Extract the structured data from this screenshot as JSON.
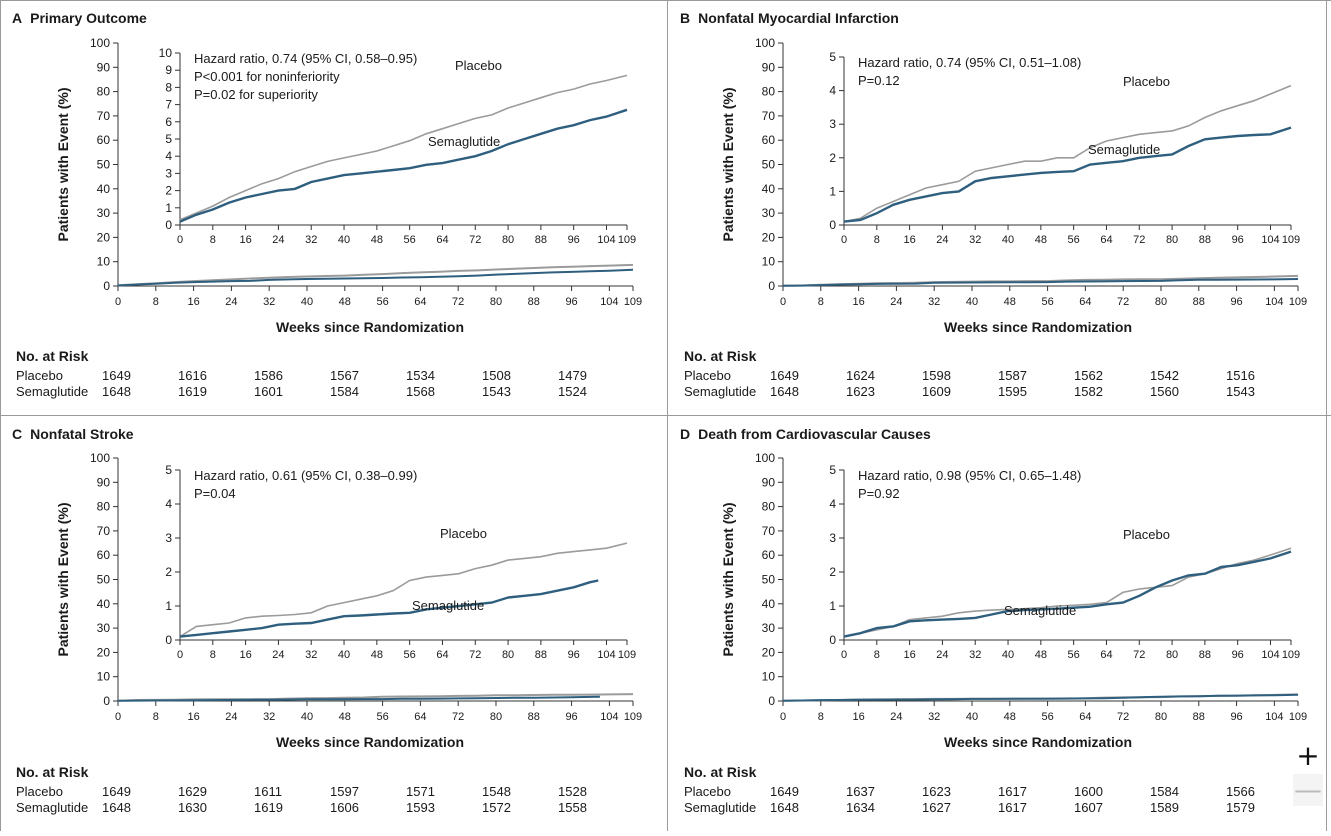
{
  "chart_data": [
    {
      "id": "A",
      "type": "line",
      "letter": "A",
      "title": "Primary Outcome",
      "xlabel": "Weeks since Randomization",
      "ylabel": "Patients with Event (%)",
      "x_ticks": [
        "0",
        "8",
        "16",
        "24",
        "32",
        "40",
        "48",
        "56",
        "64",
        "72",
        "80",
        "88",
        "96",
        "104",
        "109"
      ],
      "xlim": [
        0,
        109
      ],
      "ylim": [
        0,
        100
      ],
      "y_ticks": [
        "0",
        "10",
        "20",
        "30",
        "40",
        "50",
        "60",
        "70",
        "80",
        "90",
        "100"
      ],
      "inset": {
        "ylim": [
          0,
          10
        ],
        "y_ticks": [
          "0",
          "1",
          "2",
          "3",
          "4",
          "5",
          "6",
          "7",
          "8",
          "9",
          "10"
        ],
        "annotation": [
          "Hazard ratio, 0.74 (95% CI, 0.58–0.95)",
          "P<0.001 for noninferiority",
          "P=0.02 for superiority"
        ]
      },
      "series": [
        {
          "name": "Placebo",
          "color": "#9b9b9b",
          "x": [
            0,
            4,
            8,
            12,
            16,
            20,
            24,
            28,
            32,
            36,
            40,
            44,
            48,
            52,
            56,
            60,
            64,
            68,
            72,
            76,
            80,
            84,
            88,
            92,
            96,
            100,
            104,
            109
          ],
          "y": [
            0.3,
            0.7,
            1.1,
            1.6,
            2.0,
            2.4,
            2.7,
            3.1,
            3.4,
            3.7,
            3.9,
            4.1,
            4.3,
            4.6,
            4.9,
            5.3,
            5.6,
            5.9,
            6.2,
            6.4,
            6.8,
            7.1,
            7.4,
            7.7,
            7.9,
            8.2,
            8.4,
            8.7
          ]
        },
        {
          "name": "Semaglutide",
          "color": "#2f5f7f",
          "x": [
            0,
            4,
            8,
            12,
            16,
            20,
            24,
            28,
            32,
            36,
            40,
            44,
            48,
            52,
            56,
            60,
            64,
            68,
            72,
            76,
            80,
            84,
            88,
            92,
            96,
            100,
            104,
            109
          ],
          "y": [
            0.2,
            0.6,
            0.9,
            1.3,
            1.6,
            1.8,
            2.0,
            2.1,
            2.5,
            2.7,
            2.9,
            3.0,
            3.1,
            3.2,
            3.3,
            3.5,
            3.6,
            3.8,
            4.0,
            4.3,
            4.7,
            5.0,
            5.3,
            5.6,
            5.8,
            6.1,
            6.3,
            6.7
          ]
        }
      ],
      "risk": {
        "header": "No. at Risk",
        "rows": [
          {
            "label": "Placebo",
            "values": [
              "1649",
              "1616",
              "1586",
              "1567",
              "1534",
              "1508",
              "1479"
            ]
          },
          {
            "label": "Semaglutide",
            "values": [
              "1648",
              "1619",
              "1601",
              "1584",
              "1568",
              "1543",
              "1524"
            ]
          }
        ]
      }
    },
    {
      "id": "B",
      "type": "line",
      "letter": "B",
      "title": "Nonfatal Myocardial Infarction",
      "xlabel": "Weeks since Randomization",
      "ylabel": "Patients with Event (%)",
      "x_ticks": [
        "0",
        "8",
        "16",
        "24",
        "32",
        "40",
        "48",
        "56",
        "64",
        "72",
        "80",
        "88",
        "96",
        "104",
        "109"
      ],
      "xlim": [
        0,
        109
      ],
      "ylim": [
        0,
        100
      ],
      "y_ticks": [
        "0",
        "10",
        "20",
        "30",
        "40",
        "50",
        "60",
        "70",
        "80",
        "90",
        "100"
      ],
      "inset": {
        "ylim": [
          0,
          5
        ],
        "y_ticks": [
          "0",
          "1",
          "2",
          "3",
          "4",
          "5"
        ],
        "annotation": [
          "Hazard ratio, 0.74 (95% CI, 0.51–1.08)",
          "P=0.12"
        ]
      },
      "series": [
        {
          "name": "Placebo",
          "color": "#9b9b9b",
          "x": [
            0,
            4,
            8,
            12,
            16,
            20,
            24,
            28,
            32,
            36,
            40,
            44,
            48,
            52,
            56,
            60,
            64,
            68,
            72,
            76,
            80,
            84,
            88,
            92,
            96,
            100,
            104,
            109
          ],
          "y": [
            0.1,
            0.2,
            0.5,
            0.7,
            0.9,
            1.1,
            1.2,
            1.3,
            1.6,
            1.7,
            1.8,
            1.9,
            1.9,
            2.0,
            2.0,
            2.3,
            2.5,
            2.6,
            2.7,
            2.75,
            2.8,
            2.95,
            3.2,
            3.4,
            3.55,
            3.7,
            3.9,
            4.15
          ]
        },
        {
          "name": "Semaglutide",
          "color": "#2f5f7f",
          "x": [
            0,
            4,
            8,
            12,
            16,
            20,
            24,
            28,
            32,
            36,
            40,
            44,
            48,
            52,
            56,
            60,
            64,
            68,
            72,
            76,
            80,
            84,
            88,
            92,
            96,
            100,
            104,
            109
          ],
          "y": [
            0.1,
            0.15,
            0.35,
            0.6,
            0.75,
            0.85,
            0.95,
            1.0,
            1.3,
            1.4,
            1.45,
            1.5,
            1.55,
            1.58,
            1.6,
            1.8,
            1.85,
            1.9,
            2.0,
            2.05,
            2.1,
            2.35,
            2.55,
            2.6,
            2.65,
            2.68,
            2.7,
            2.9
          ]
        }
      ],
      "risk": {
        "header": "No. at Risk",
        "rows": [
          {
            "label": "Placebo",
            "values": [
              "1649",
              "1624",
              "1598",
              "1587",
              "1562",
              "1542",
              "1516"
            ]
          },
          {
            "label": "Semaglutide",
            "values": [
              "1648",
              "1623",
              "1609",
              "1595",
              "1582",
              "1560",
              "1543"
            ]
          }
        ]
      }
    },
    {
      "id": "C",
      "type": "line",
      "letter": "C",
      "title": "Nonfatal Stroke",
      "xlabel": "Weeks since Randomization",
      "ylabel": "Patients with Event (%)",
      "x_ticks": [
        "0",
        "8",
        "16",
        "24",
        "32",
        "40",
        "48",
        "56",
        "64",
        "72",
        "80",
        "88",
        "96",
        "104",
        "109"
      ],
      "xlim": [
        0,
        109
      ],
      "ylim": [
        0,
        100
      ],
      "y_ticks": [
        "0",
        "10",
        "20",
        "30",
        "40",
        "50",
        "60",
        "70",
        "80",
        "90",
        "100"
      ],
      "inset": {
        "ylim": [
          0,
          5
        ],
        "y_ticks": [
          "0",
          "1",
          "2",
          "3",
          "4",
          "5"
        ],
        "annotation": [
          "Hazard ratio, 0.61 (95% CI, 0.38–0.99)",
          "P=0.04"
        ]
      },
      "series": [
        {
          "name": "Placebo",
          "color": "#9b9b9b",
          "x": [
            0,
            4,
            8,
            12,
            16,
            20,
            24,
            28,
            32,
            36,
            40,
            44,
            48,
            52,
            56,
            60,
            64,
            68,
            72,
            76,
            80,
            84,
            88,
            92,
            96,
            100,
            104,
            109
          ],
          "y": [
            0.1,
            0.4,
            0.45,
            0.5,
            0.65,
            0.7,
            0.72,
            0.75,
            0.8,
            1.0,
            1.1,
            1.2,
            1.3,
            1.45,
            1.75,
            1.85,
            1.9,
            1.95,
            2.1,
            2.2,
            2.35,
            2.4,
            2.45,
            2.55,
            2.6,
            2.65,
            2.7,
            2.85
          ]
        },
        {
          "name": "Semaglutide",
          "color": "#2f5f7f",
          "x": [
            0,
            4,
            8,
            12,
            16,
            20,
            24,
            28,
            32,
            36,
            40,
            44,
            48,
            52,
            56,
            60,
            64,
            68,
            72,
            76,
            80,
            84,
            88,
            92,
            96,
            100,
            102
          ],
          "y": [
            0.1,
            0.15,
            0.2,
            0.25,
            0.3,
            0.35,
            0.45,
            0.48,
            0.5,
            0.6,
            0.7,
            0.72,
            0.75,
            0.78,
            0.8,
            0.9,
            0.95,
            1.0,
            1.05,
            1.1,
            1.25,
            1.3,
            1.35,
            1.45,
            1.55,
            1.7,
            1.75
          ]
        }
      ],
      "risk": {
        "header": "No. at Risk",
        "rows": [
          {
            "label": "Placebo",
            "values": [
              "1649",
              "1629",
              "1611",
              "1597",
              "1571",
              "1548",
              "1528"
            ]
          },
          {
            "label": "Semaglutide",
            "values": [
              "1648",
              "1630",
              "1619",
              "1606",
              "1593",
              "1572",
              "1558"
            ]
          }
        ]
      }
    },
    {
      "id": "D",
      "type": "line",
      "letter": "D",
      "title": "Death from Cardiovascular Causes",
      "xlabel": "Weeks since Randomization",
      "ylabel": "Patients with Event (%)",
      "x_ticks": [
        "0",
        "8",
        "16",
        "24",
        "32",
        "40",
        "48",
        "56",
        "64",
        "72",
        "80",
        "88",
        "96",
        "104",
        "109"
      ],
      "xlim": [
        0,
        109
      ],
      "ylim": [
        0,
        100
      ],
      "y_ticks": [
        "0",
        "10",
        "20",
        "30",
        "40",
        "50",
        "60",
        "70",
        "80",
        "90",
        "100"
      ],
      "inset": {
        "ylim": [
          0,
          5
        ],
        "y_ticks": [
          "0",
          "1",
          "2",
          "3",
          "4",
          "5"
        ],
        "annotation": [
          "Hazard ratio, 0.98 (95% CI, 0.65–1.48)",
          "P=0.92"
        ]
      },
      "series": [
        {
          "name": "Placebo",
          "color": "#9b9b9b",
          "x": [
            0,
            4,
            8,
            12,
            16,
            20,
            24,
            28,
            32,
            36,
            40,
            44,
            48,
            52,
            56,
            60,
            64,
            68,
            72,
            76,
            80,
            84,
            88,
            92,
            96,
            100,
            104,
            109
          ],
          "y": [
            0.1,
            0.2,
            0.3,
            0.4,
            0.6,
            0.65,
            0.7,
            0.8,
            0.85,
            0.88,
            0.9,
            0.92,
            0.95,
            1.0,
            1.02,
            1.05,
            1.1,
            1.4,
            1.5,
            1.55,
            1.6,
            1.85,
            1.95,
            2.1,
            2.25,
            2.35,
            2.5,
            2.7
          ]
        },
        {
          "name": "Semaglutide",
          "color": "#2f5f7f",
          "x": [
            0,
            4,
            8,
            12,
            16,
            20,
            24,
            28,
            32,
            36,
            40,
            44,
            48,
            52,
            56,
            60,
            64,
            68,
            72,
            76,
            80,
            84,
            88,
            92,
            96,
            100,
            104,
            109
          ],
          "y": [
            0.1,
            0.2,
            0.35,
            0.4,
            0.55,
            0.58,
            0.6,
            0.62,
            0.65,
            0.75,
            0.85,
            0.88,
            0.9,
            0.92,
            0.95,
            0.98,
            1.05,
            1.1,
            1.3,
            1.55,
            1.75,
            1.9,
            1.95,
            2.15,
            2.2,
            2.3,
            2.4,
            2.6
          ]
        }
      ],
      "risk": {
        "header": "No. at Risk",
        "rows": [
          {
            "label": "Placebo",
            "values": [
              "1649",
              "1637",
              "1623",
              "1617",
              "1600",
              "1584",
              "1566"
            ]
          },
          {
            "label": "Semaglutide",
            "values": [
              "1648",
              "1634",
              "1627",
              "1617",
              "1607",
              "1589",
              "1579"
            ]
          }
        ]
      }
    }
  ],
  "controls": {
    "zoom_in_label": "+",
    "zoom_out_label": "—"
  }
}
